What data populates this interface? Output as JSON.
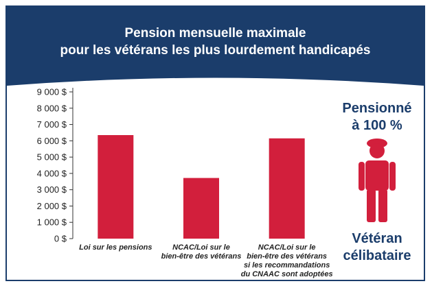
{
  "title_line1": "Pension mensuelle maximale",
  "title_line2": "pour les vétérans les plus lourdement handicapés",
  "colors": {
    "header": "#1b3d6b",
    "bar": "#d21f3c",
    "text": "#1b3d6b"
  },
  "side": {
    "top_line1": "Pensionné",
    "top_line2": "à 100 %",
    "bottom_line1": "Vétéran",
    "bottom_line2": "célibataire",
    "icon": "veteran-person-icon"
  },
  "chart_data": {
    "type": "bar",
    "categories": [
      [
        "Loi sur les pensions"
      ],
      [
        "NCAC/Loi sur le",
        "bien-être des vétérans"
      ],
      [
        "NCAC/Loi sur le",
        "bien-être des vétérans",
        "si les recommandations",
        "du CNAAC sont adoptées"
      ]
    ],
    "values": [
      6350,
      3720,
      6150
    ],
    "ylim": [
      0,
      9000
    ],
    "yticks": [
      "0 $",
      "1 000 $",
      "2 000 $",
      "3 000 $",
      "4 000 $",
      "5 000 $",
      "6 000 $",
      "7 000 $",
      "8 000 $",
      "9 000 $"
    ],
    "ytick_values": [
      0,
      1000,
      2000,
      3000,
      4000,
      5000,
      6000,
      7000,
      8000,
      9000
    ],
    "grid": false
  }
}
